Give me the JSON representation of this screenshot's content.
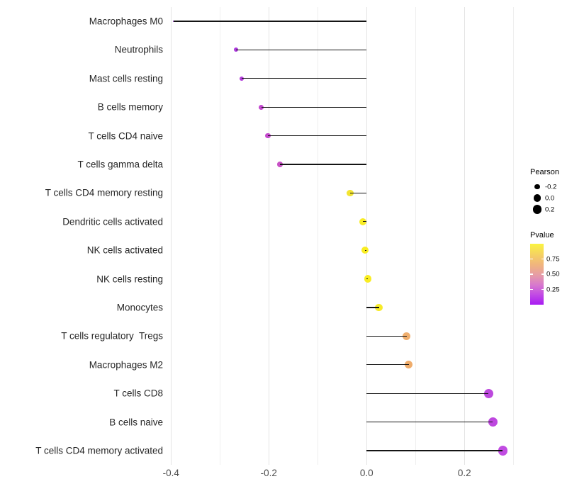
{
  "chart_data": {
    "type": "scatter",
    "variant": "lollipop",
    "orientation": "horizontal",
    "title": "",
    "xlabel": "",
    "ylabel": "",
    "xlim": [
      -0.44,
      0.31
    ],
    "baseline_x": 0.0,
    "grid": "vertical only, light gray, major + minor",
    "x_major_ticks": [
      -0.4,
      -0.2,
      0.0,
      0.2
    ],
    "x_tick_labels": [
      "-0.4",
      "-0.2",
      "0.0",
      "0.2"
    ],
    "x_minor_ticks": [
      -0.3,
      -0.1,
      0.1,
      0.3
    ],
    "size_mapped_to": "Pearson",
    "color_mapped_to": "Pvalue",
    "points": [
      {
        "category": "Macrophages M0",
        "pearson": -0.395,
        "color": "#9d2fd6"
      },
      {
        "category": "Neutrophils",
        "pearson": -0.267,
        "color": "#ac38dc"
      },
      {
        "category": "Mast cells resting",
        "pearson": -0.256,
        "color": "#b23cda"
      },
      {
        "category": "B cells memory",
        "pearson": -0.215,
        "color": "#c247ce"
      },
      {
        "category": "T cells CD4 naive",
        "pearson": -0.202,
        "color": "#c44bcd"
      },
      {
        "category": "T cells gamma delta",
        "pearson": -0.177,
        "color": "#c851c6"
      },
      {
        "category": "T cells CD4 memory resting",
        "pearson": -0.034,
        "color": "#f3e431"
      },
      {
        "category": "Dendritic cells activated",
        "pearson": -0.008,
        "color": "#f8ec25"
      },
      {
        "category": "NK cells activated",
        "pearson": -0.003,
        "color": "#f9ed22"
      },
      {
        "category": "NK cells resting",
        "pearson": 0.003,
        "color": "#f9ed22"
      },
      {
        "category": "Monocytes",
        "pearson": 0.025,
        "color": "#f7eb28"
      },
      {
        "category": "T cells regulatory  Tregs",
        "pearson": 0.082,
        "color": "#efae6e"
      },
      {
        "category": "Macrophages M2",
        "pearson": 0.086,
        "color": "#efac6b"
      },
      {
        "category": "T cells CD8",
        "pearson": 0.249,
        "color": "#bc49dd"
      },
      {
        "category": "B cells naive",
        "pearson": 0.258,
        "color": "#be47df"
      },
      {
        "category": "T cells CD4 memory activated",
        "pearson": 0.278,
        "color": "#c14ce2"
      }
    ],
    "size_legend": {
      "title": "Pearson",
      "entries": [
        {
          "label": "-0.2",
          "value": -0.2
        },
        {
          "label": "0.0",
          "value": 0.0
        },
        {
          "label": "0.2",
          "value": 0.2
        }
      ],
      "dot_color": "#000000"
    },
    "color_legend": {
      "title": "Pvalue",
      "tick_labels": [
        "0.75",
        "0.50",
        "0.25"
      ],
      "tick_values": [
        0.75,
        0.5,
        0.25
      ],
      "range": [
        0.0,
        1.0
      ],
      "gradient_top_color": "#faf440",
      "gradient_bottom_color": "#a81bf2"
    },
    "stem_color": "#141414"
  }
}
